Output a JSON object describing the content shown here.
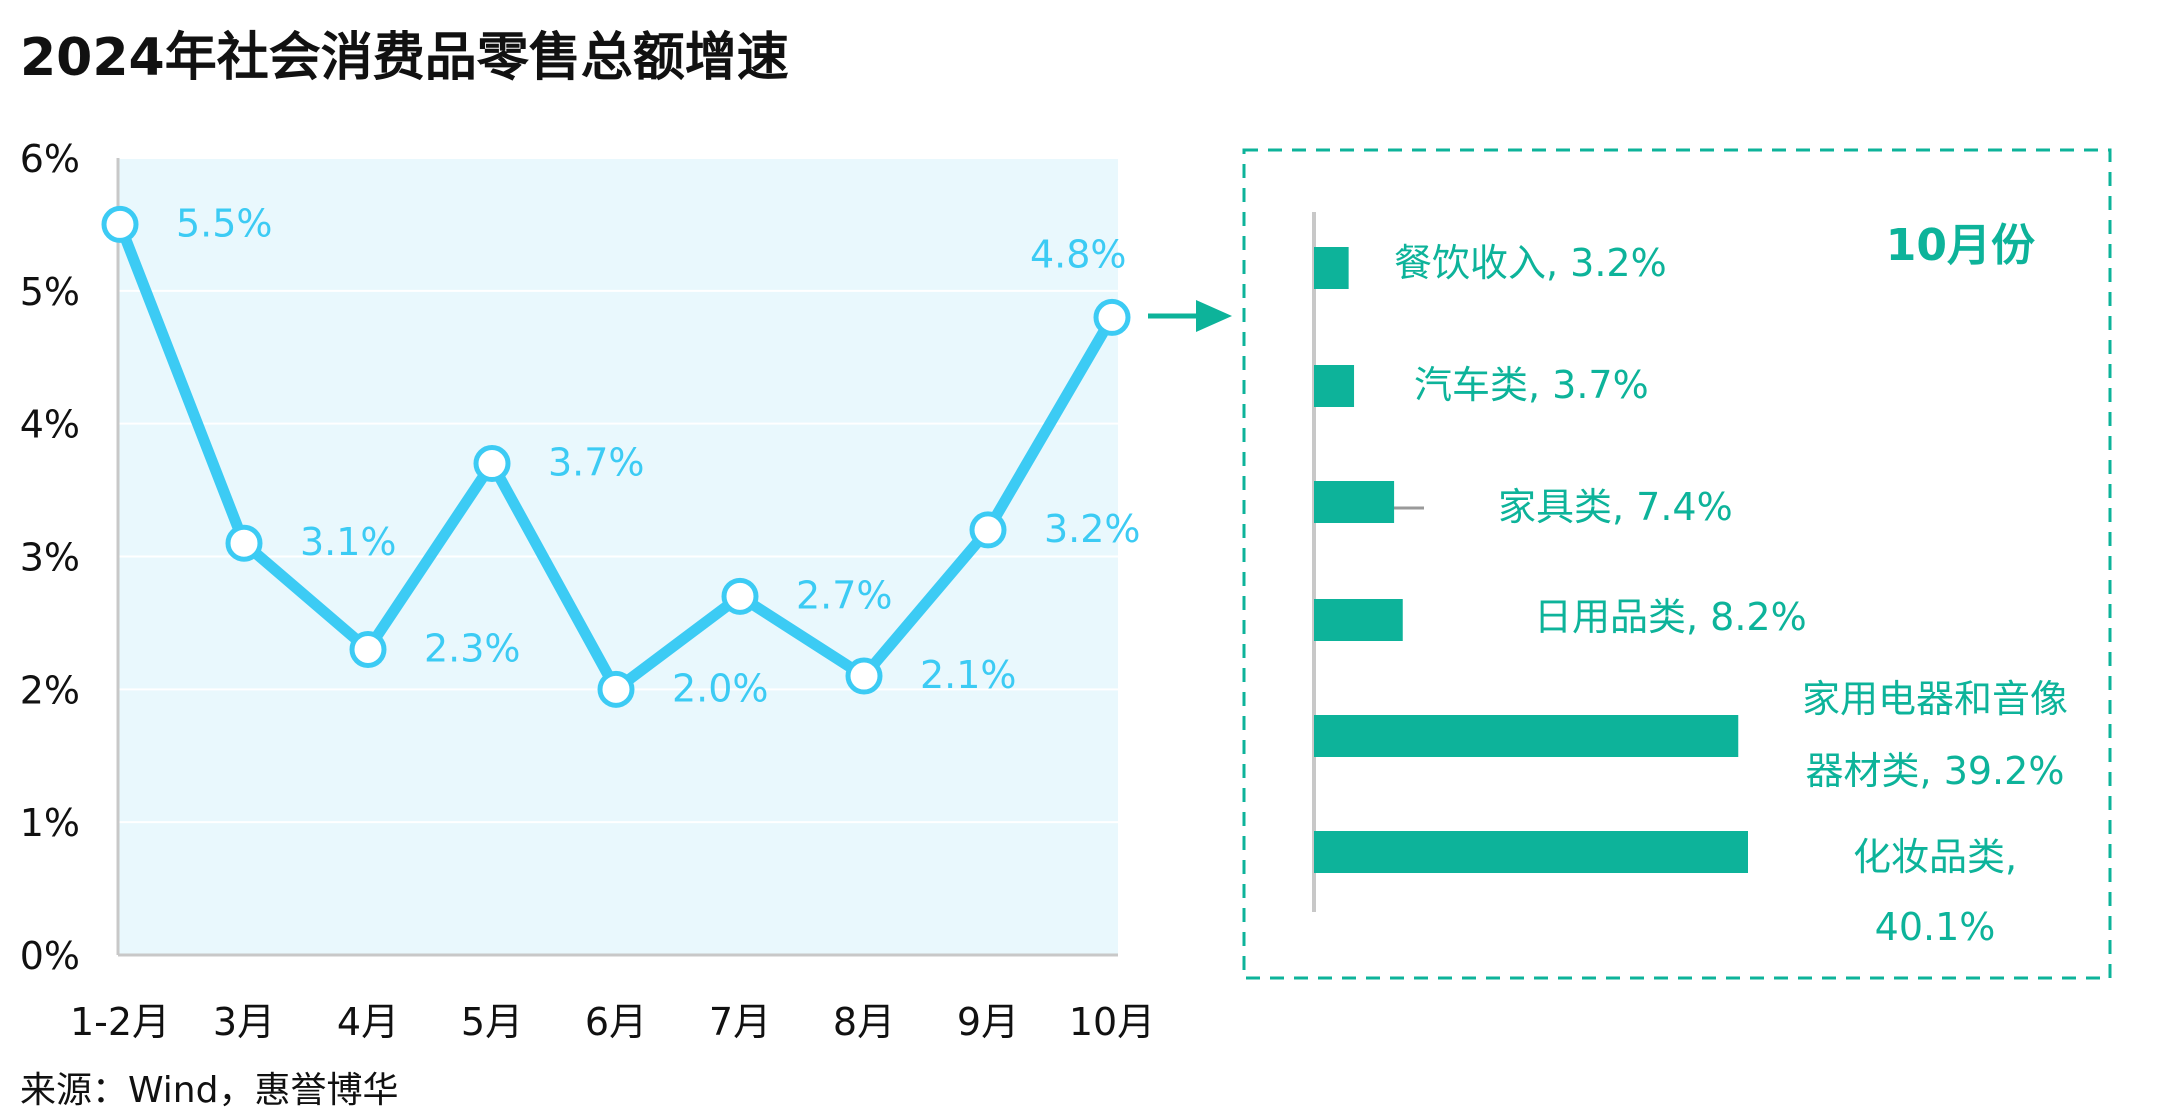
{
  "title": "2024年社会消费品零售总额增速",
  "source": "来源：Wind，惠誉博华",
  "colors": {
    "line": "#3ccbf4",
    "plot_bg": "#e9f8fd",
    "bar": "#0db39a",
    "text": "#111111"
  },
  "chart_data": [
    {
      "type": "line",
      "title": "2024年社会消费品零售总额增速",
      "categories": [
        "1-2月",
        "3月",
        "4月",
        "5月",
        "6月",
        "7月",
        "8月",
        "9月",
        "10月"
      ],
      "values": [
        5.5,
        3.1,
        2.3,
        3.7,
        2.0,
        2.7,
        2.1,
        3.2,
        4.8
      ],
      "labels": [
        "5.5%",
        "3.1%",
        "2.3%",
        "3.7%",
        "2.0%",
        "2.7%",
        "2.1%",
        "3.2%",
        "4.8%"
      ],
      "yticks": [
        "0%",
        "1%",
        "2%",
        "3%",
        "4%",
        "5%",
        "6%"
      ],
      "ylim": [
        0,
        6
      ],
      "grid": true,
      "unit": "%"
    },
    {
      "type": "bar",
      "orientation": "horizontal",
      "title": "10月份",
      "categories": [
        "餐饮收入",
        "汽车类",
        "家具类",
        "日用品类",
        "家用电器和音像器材类",
        "化妆品类"
      ],
      "values": [
        3.2,
        3.7,
        7.4,
        8.2,
        39.2,
        40.1
      ],
      "labels": [
        [
          "餐饮收入, 3.2%"
        ],
        [
          "汽车类, 3.7%"
        ],
        [
          "家具类, 7.4%"
        ],
        [
          "日用品类, 8.2%"
        ],
        [
          "家用电器和音像",
          "器材类, 39.2%"
        ],
        [
          "化妆品类,",
          "40.1%"
        ]
      ],
      "unit": "%"
    }
  ]
}
